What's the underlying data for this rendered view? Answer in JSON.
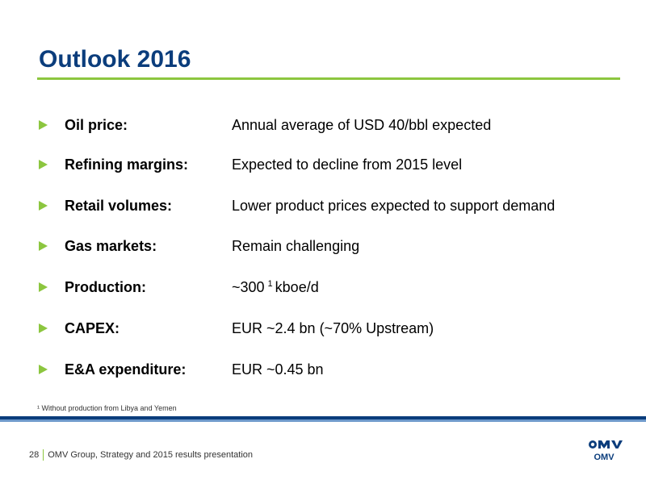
{
  "slide": {
    "title": "Outlook 2016",
    "items": [
      {
        "label": "Oil price:",
        "value": "Annual average of USD 40/bbl expected"
      },
      {
        "label": "Refining margins:",
        "value": "Expected to decline from 2015 level"
      },
      {
        "label": "Retail volumes:",
        "value": "Lower product prices expected to support demand"
      },
      {
        "label": "Gas markets:",
        "value": "Remain challenging"
      },
      {
        "label": "Production:",
        "value": "~300",
        "superscript": "1",
        "value_suffix": "kboe/d"
      },
      {
        "label": "CAPEX:",
        "value": "EUR ~2.4 bn (~70% Upstream)"
      },
      {
        "label": "E&A expenditure:",
        "value": "EUR ~0.45 bn"
      }
    ],
    "footnote": "¹ Without production from Libya and Yemen"
  },
  "footer": {
    "page_number": "28",
    "text": "OMV Group, Strategy and 2015 results presentation",
    "logo_text": "OMV"
  },
  "colors": {
    "title": "#0b3d7c",
    "accent_green": "#8cc63f",
    "band_dark": "#0b3d7c",
    "band_light": "#6f9acb"
  }
}
